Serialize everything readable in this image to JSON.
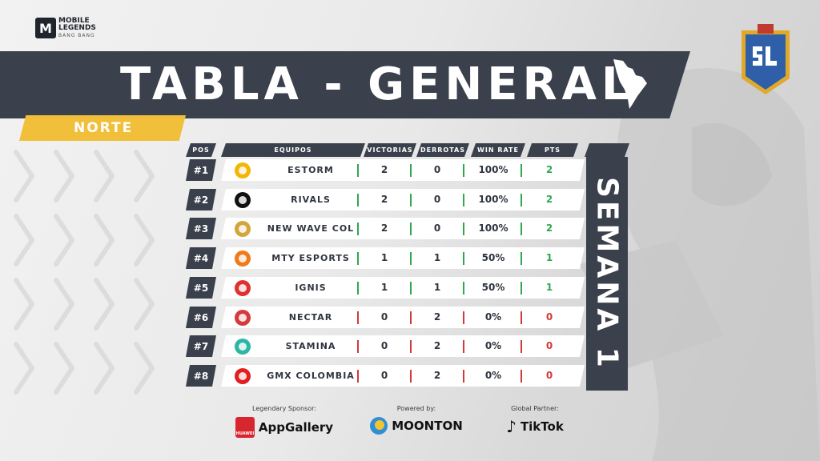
{
  "brand": {
    "game_logo_line1": "MOBILE",
    "game_logo_line2": "LEGENDS",
    "game_logo_sub": "BANG BANG"
  },
  "header": {
    "title": "TABLA - GENERAL",
    "region": "NORTE"
  },
  "table": {
    "columns": [
      "POS",
      "EQUIPOS",
      "VICTORIAS",
      "DERROTAS",
      "WIN RATE",
      "PTS"
    ],
    "rows": [
      {
        "pos": "#1",
        "team": "ESTORM",
        "wins": "2",
        "losses": "0",
        "win_rate": "100%",
        "pts": "2",
        "logo_color": "#f2b705"
      },
      {
        "pos": "#2",
        "team": "RIVALS",
        "wins": "2",
        "losses": "0",
        "win_rate": "100%",
        "pts": "2",
        "logo_color": "#111111"
      },
      {
        "pos": "#3",
        "team": "NEW WAVE COL",
        "wins": "2",
        "losses": "0",
        "win_rate": "100%",
        "pts": "2",
        "logo_color": "#d4a53c"
      },
      {
        "pos": "#4",
        "team": "MTY ESPORTS",
        "wins": "1",
        "losses": "1",
        "win_rate": "50%",
        "pts": "1",
        "logo_color": "#f07a1a"
      },
      {
        "pos": "#5",
        "team": "IGNIS",
        "wins": "1",
        "losses": "1",
        "win_rate": "50%",
        "pts": "1",
        "logo_color": "#e03131"
      },
      {
        "pos": "#6",
        "team": "NECTAR",
        "wins": "0",
        "losses": "2",
        "win_rate": "0%",
        "pts": "0",
        "logo_color": "#d63b3b"
      },
      {
        "pos": "#7",
        "team": "STAMINA",
        "wins": "0",
        "losses": "2",
        "win_rate": "0%",
        "pts": "0",
        "logo_color": "#2bb7a4"
      },
      {
        "pos": "#8",
        "team": "GMX COLOMBIA",
        "wins": "0",
        "losses": "2",
        "win_rate": "0%",
        "pts": "0",
        "logo_color": "#e02020"
      }
    ]
  },
  "week_label": "SEMANA 1",
  "sponsors": [
    {
      "caption": "Legendary Sponsor:",
      "brand": "AppGallery",
      "icon_text": "HUAWEI",
      "icon": "huawei-appgallery-icon"
    },
    {
      "caption": "Powered by:",
      "brand": "MOONTON",
      "icon": "moonton-icon"
    },
    {
      "caption": "Global Partner:",
      "brand": "TikTok",
      "icon": "tiktok-icon"
    }
  ],
  "colors": {
    "dark_band": "#3a404c",
    "accent_yellow": "#f2bf3a",
    "positive": "#2fa84f",
    "negative": "#d23a3a"
  }
}
